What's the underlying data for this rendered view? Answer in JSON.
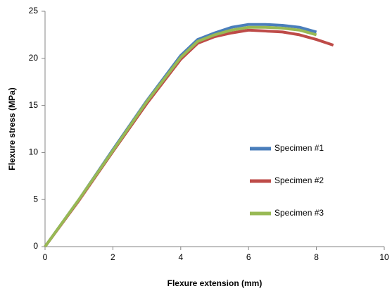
{
  "chart_data": {
    "type": "line",
    "x_label": "Flexure extension (mm)",
    "y_label": "Flexure stress (MPa)",
    "xlim": [
      0,
      10
    ],
    "xticks": [
      0,
      2,
      4,
      6,
      8,
      10
    ],
    "ylim": [
      0,
      25
    ],
    "yticks": [
      0,
      5,
      10,
      15,
      20,
      25
    ],
    "grid": false,
    "legend": "right",
    "series": [
      {
        "name": "Specimen #1",
        "color": "#4a7ebb",
        "x": [
          0,
          1,
          2,
          3,
          4,
          4.5,
          5,
          5.5,
          6,
          6.5,
          7,
          7.5,
          8
        ],
        "values": [
          0,
          5,
          10.3,
          15.5,
          20.3,
          22,
          22.7,
          23.3,
          23.6,
          23.6,
          23.5,
          23.3,
          22.8
        ]
      },
      {
        "name": "Specimen #2",
        "color": "#be4b48",
        "x": [
          0,
          1,
          2,
          3,
          4,
          4.5,
          5,
          5.5,
          6,
          6.5,
          7,
          7.5,
          8,
          8.5
        ],
        "values": [
          0,
          4.9,
          10.1,
          15.2,
          19.9,
          21.6,
          22.3,
          22.7,
          23.0,
          22.9,
          22.8,
          22.5,
          22.0,
          21.4
        ]
      },
      {
        "name": "Specimen #3",
        "color": "#98b954",
        "x": [
          0,
          1,
          2,
          3,
          4,
          4.5,
          5,
          5.5,
          6,
          6.5,
          7,
          7.5,
          8
        ],
        "values": [
          0,
          5,
          10.2,
          15.4,
          20.1,
          21.8,
          22.5,
          23.0,
          23.3,
          23.3,
          23.2,
          23.0,
          22.5
        ]
      }
    ]
  }
}
